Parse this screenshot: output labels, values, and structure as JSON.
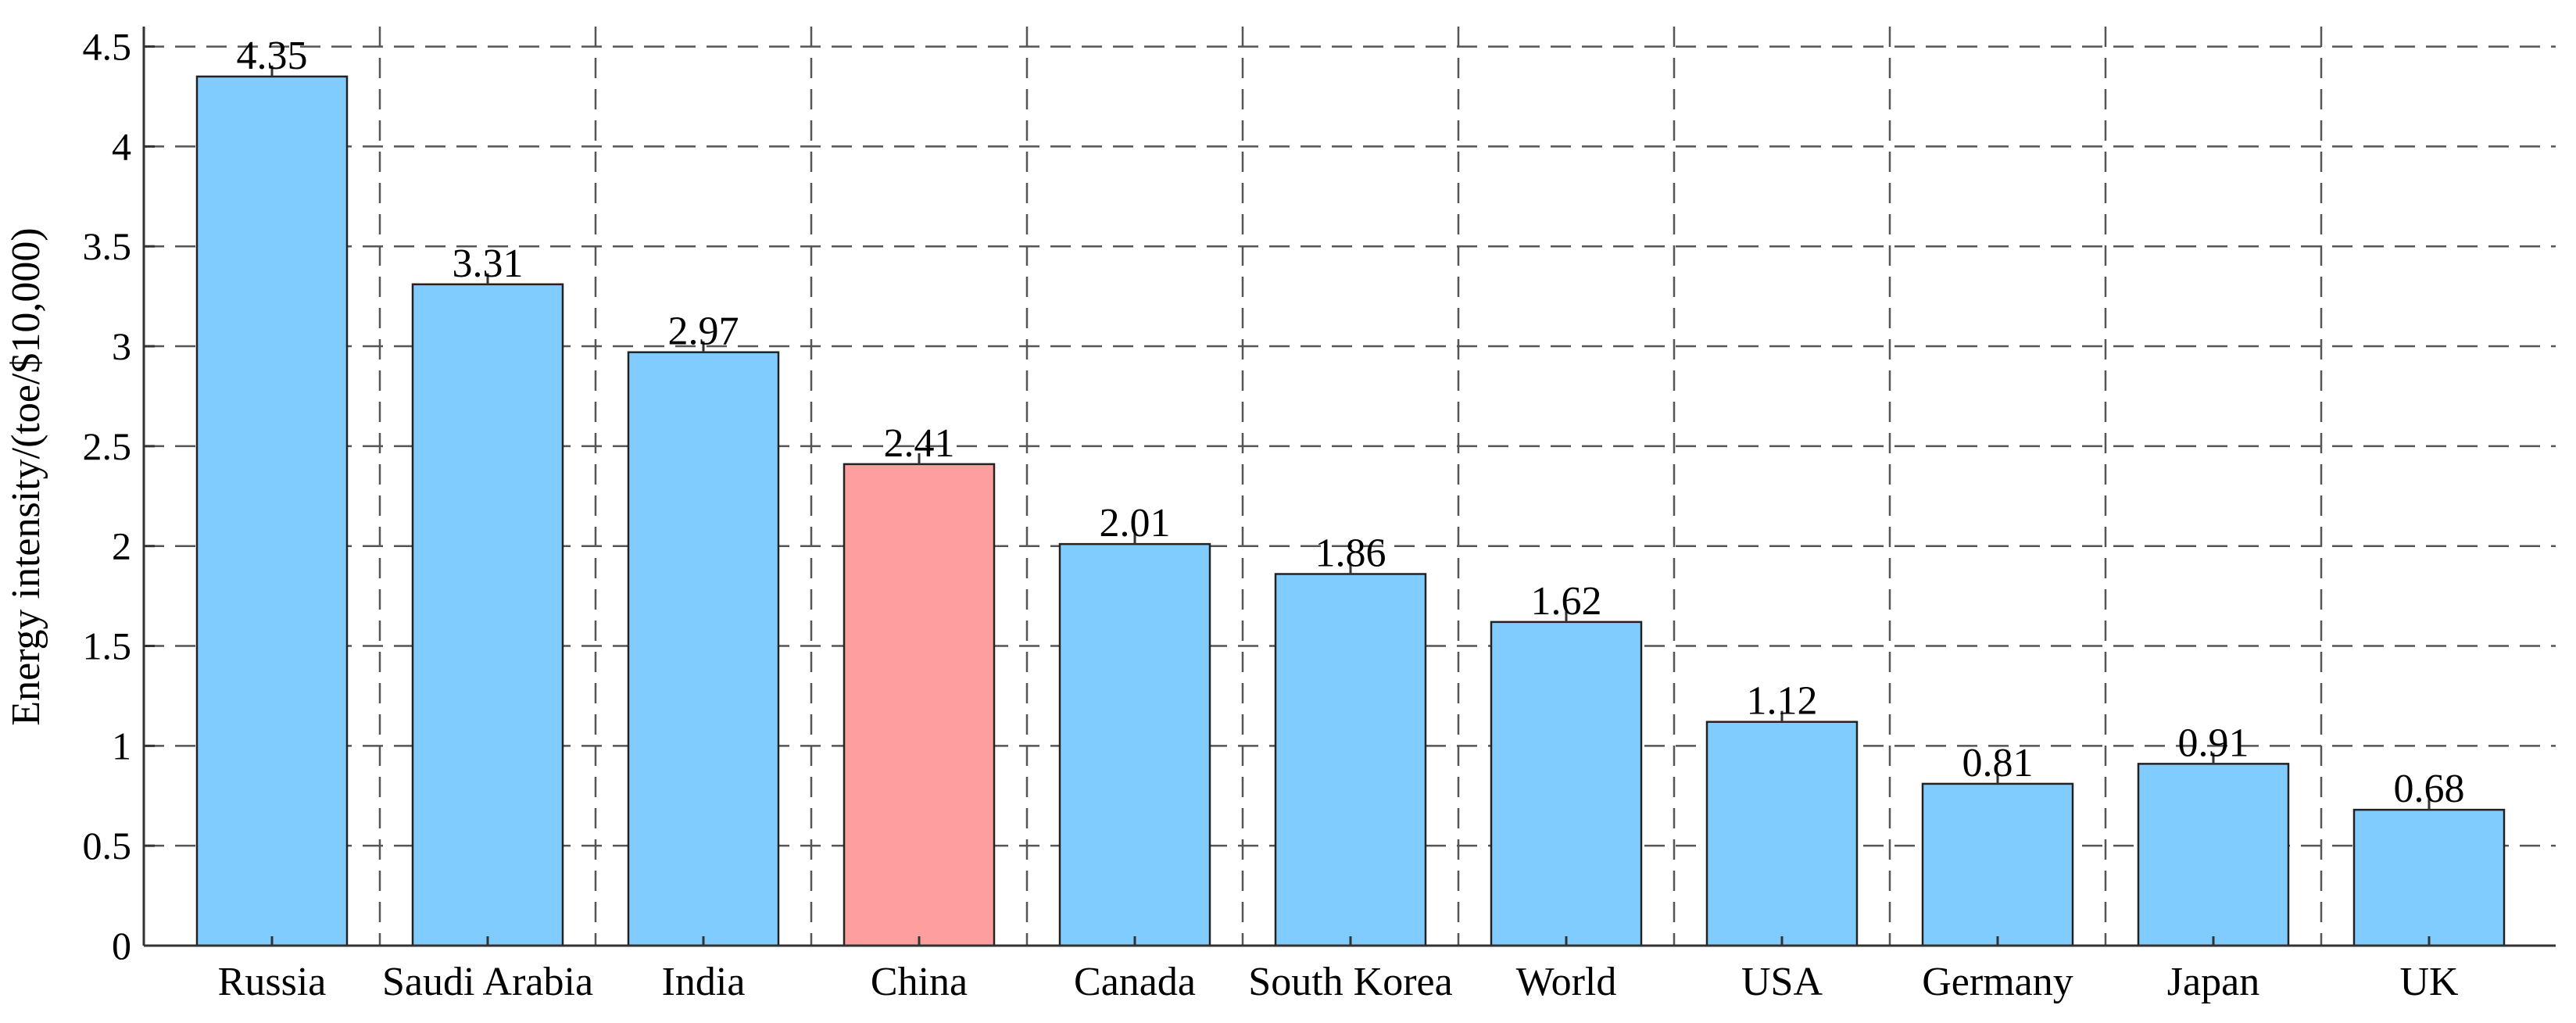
{
  "chart_data": {
    "type": "bar",
    "categories": [
      "Russia",
      "Saudi Arabia",
      "India",
      "China",
      "Canada",
      "South Korea",
      "World",
      "USA",
      "Germany",
      "Japan",
      "UK"
    ],
    "values": [
      4.35,
      3.31,
      2.97,
      2.41,
      2.01,
      1.86,
      1.62,
      1.12,
      0.81,
      0.91,
      0.68
    ],
    "value_labels": [
      "4.35",
      "3.31",
      "2.97",
      "2.41",
      "2.01",
      "1.86",
      "1.62",
      "1.12",
      "0.81",
      "0.91",
      "0.68"
    ],
    "colors": [
      "#80ccff",
      "#80ccff",
      "#80ccff",
      "#ff9e9e",
      "#80ccff",
      "#80ccff",
      "#80ccff",
      "#80ccff",
      "#80ccff",
      "#80ccff",
      "#80ccff"
    ],
    "title": "",
    "xlabel": "",
    "ylabel": "Energy intensity/(toe/$10,000)",
    "ylim": [
      0,
      4.6
    ],
    "yticks": [
      0,
      0.5,
      1,
      1.5,
      2,
      2.5,
      3,
      3.5,
      4,
      4.5
    ],
    "ytick_labels": [
      "0",
      "0.5",
      "1",
      "1.5",
      "2",
      "2.5",
      "3",
      "3.5",
      "4",
      "4.5"
    ],
    "grid": true,
    "grid_style": "dashed",
    "legend": "none"
  }
}
